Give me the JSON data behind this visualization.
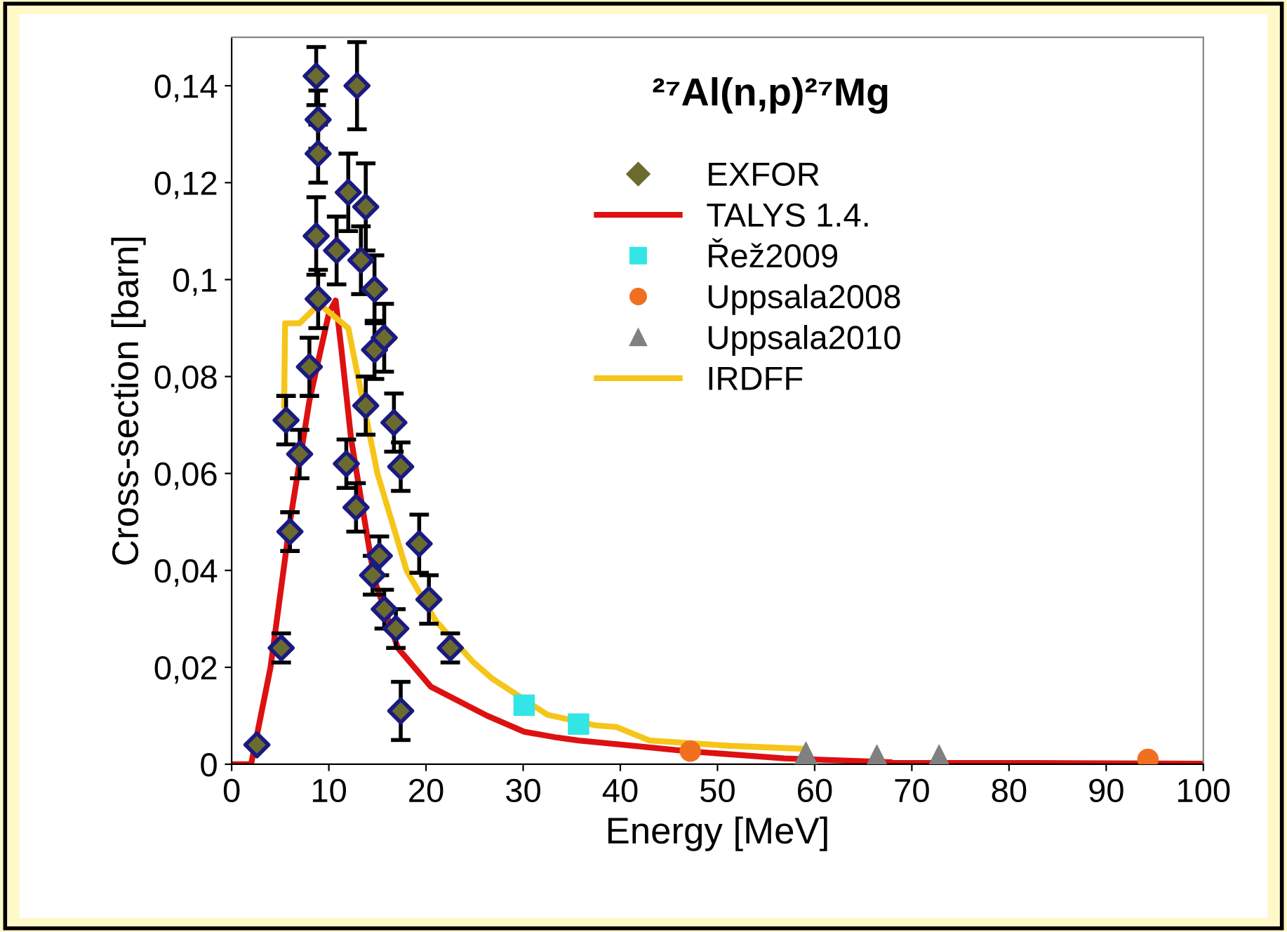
{
  "chart_data": {
    "type": "scatter",
    "title": "²⁷Al(n,p)²⁷Mg",
    "xlabel": "Energy [MeV]",
    "ylabel": "Cross-section [barn]",
    "xlim": [
      0,
      100
    ],
    "xticks": [
      0,
      10,
      20,
      30,
      40,
      50,
      60,
      70,
      80,
      90,
      100
    ],
    "ylim": [
      0,
      0.15
    ],
    "yticks": [
      0,
      {
        "value": 0.02,
        "label": "0,02"
      },
      {
        "value": 0.04,
        "label": "0,04"
      },
      {
        "value": 0.06,
        "label": "0,06"
      },
      {
        "value": 0.08,
        "label": "0,08"
      },
      {
        "value": 0.1,
        "label": "0,1"
      },
      {
        "value": 0.12,
        "label": "0,12"
      },
      {
        "value": 0.14,
        "label": "0,14"
      }
    ],
    "grid": false,
    "legend": "top right",
    "series": [
      {
        "name": "EXFOR",
        "marker": "diamond",
        "color": "#6b6b2f",
        "x": [
          2.6,
          5.1,
          5.6,
          6.0,
          7.0,
          8.0,
          8.9,
          8.7,
          8.9,
          8.9,
          8.7,
          10.8,
          11.8,
          12.0,
          12.8,
          12.9,
          13.3,
          13.8,
          13.8,
          14.5,
          14.7,
          14.7,
          15.2,
          15.7,
          15.7,
          16.7,
          16.9,
          17.4,
          17.4,
          19.3,
          20.3,
          22.5
        ],
        "values": [
          0.004,
          0.024,
          0.071,
          0.048,
          0.064,
          0.082,
          0.096,
          0.109,
          0.126,
          0.133,
          0.142,
          0.106,
          0.062,
          0.118,
          0.053,
          0.14,
          0.104,
          0.115,
          0.074,
          0.039,
          0.098,
          0.0855,
          0.043,
          0.088,
          0.032,
          0.0705,
          0.028,
          0.0614,
          0.011,
          0.0455,
          0.034,
          0.024
        ],
        "errors": [
          null,
          0.003,
          0.005,
          0.004,
          0.005,
          0.006,
          0.006,
          0.008,
          0.006,
          0.006,
          0.006,
          0.007,
          0.005,
          0.008,
          0.005,
          0.009,
          0.007,
          0.009,
          0.006,
          0.004,
          0.007,
          0.006,
          0.004,
          0.007,
          0.004,
          0.006,
          0.004,
          0.005,
          0.006,
          0.006,
          0.005,
          0.003
        ]
      },
      {
        "name": "TALYS 1.4.",
        "type": "line",
        "color": "#dd1111",
        "x": [
          0,
          2.0,
          4.0,
          6.0,
          8.0,
          10.0,
          10.7,
          11.3,
          12.3,
          14.7,
          17.1,
          20.5,
          26.3,
          30.1,
          33.5,
          35.7,
          41.3,
          46.9,
          56.9,
          68,
          100
        ],
        "values": [
          0,
          0,
          0.02,
          0.05,
          0.075,
          0.093,
          0.0957,
          0.0855,
          0.067,
          0.038,
          0.024,
          0.016,
          0.01,
          0.0067,
          0.0055,
          0.0049,
          0.0038,
          0.0027,
          0.0012,
          0.0004,
          0.0001
        ]
      },
      {
        "name": "Řež2009",
        "marker": "square",
        "color": "#33e5e5",
        "x": [
          30.1,
          35.7
        ],
        "values": [
          0.0122,
          0.0083
        ]
      },
      {
        "name": "Uppsala2008",
        "marker": "circle",
        "color": "#f07020",
        "x": [
          47.2,
          94.3
        ],
        "values": [
          0.0027,
          0.001
        ]
      },
      {
        "name": "Uppsala2010",
        "marker": "triangle",
        "color": "#808080",
        "x": [
          59.1,
          66.4,
          72.8
        ],
        "values": [
          0.0016,
          0.001,
          0.001
        ]
      },
      {
        "name": "IRDFF",
        "type": "line",
        "color": "#f5c518",
        "x": [
          5.4,
          5.5,
          7.0,
          9.0,
          12.0,
          15.0,
          18.0,
          21.0,
          24.9,
          26.8,
          32.5,
          37.5,
          39.6,
          43.0,
          51.3,
          58.6
        ],
        "values": [
          0.074,
          0.091,
          0.091,
          0.095,
          0.09,
          0.06,
          0.04,
          0.0296,
          0.021,
          0.0177,
          0.0102,
          0.008,
          0.0077,
          0.0049,
          0.0038,
          0.0032
        ]
      }
    ]
  }
}
